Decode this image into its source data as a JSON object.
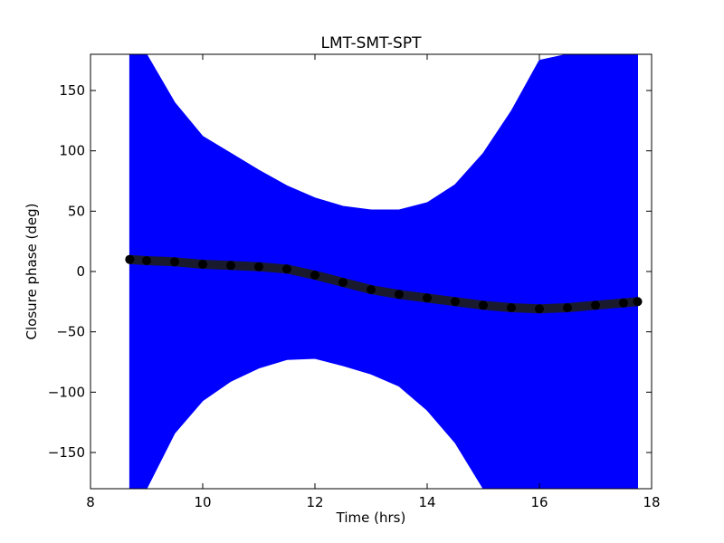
{
  "chart_data": {
    "type": "line",
    "title": "LMT-SMT-SPT",
    "xlabel": "Time (hrs)",
    "ylabel": "Closure phase (deg)",
    "xlim": [
      8,
      18
    ],
    "ylim": [
      -180,
      180
    ],
    "x_ticks": [
      8,
      10,
      12,
      14,
      16,
      18
    ],
    "y_ticks": [
      -150,
      -100,
      -50,
      0,
      50,
      100,
      150
    ],
    "x_tick_labels": [
      "8",
      "10",
      "12",
      "14",
      "16",
      "18"
    ],
    "y_tick_labels": [
      "−150",
      "−100",
      "−50",
      "0",
      "50",
      "100",
      "150"
    ],
    "grid": false,
    "series": [
      {
        "role": "closure-phase",
        "color": "#000000",
        "x": [
          8.7,
          9.0,
          9.5,
          10.0,
          10.5,
          11.0,
          11.5,
          12.0,
          12.5,
          13.0,
          13.5,
          14.0,
          14.5,
          15.0,
          15.5,
          16.0,
          16.5,
          17.0,
          17.5,
          17.75
        ],
        "y": [
          10,
          9,
          8,
          6,
          5,
          4,
          2,
          -3,
          -9,
          -15,
          -19,
          -22,
          -25,
          -28,
          -30,
          -31,
          -30,
          -28,
          -26,
          -25
        ]
      }
    ],
    "error_band": {
      "color": "#0000ff",
      "x": [
        8.7,
        9.0,
        9.5,
        10.0,
        10.5,
        11.0,
        11.5,
        12.0,
        12.5,
        13.0,
        13.5,
        14.0,
        14.5,
        15.0,
        15.5,
        16.0,
        16.5,
        17.0,
        17.5,
        17.75
      ],
      "upper": [
        180,
        180,
        140,
        112,
        98,
        84,
        71,
        61,
        54,
        51,
        51,
        57,
        72,
        98,
        133,
        175,
        180,
        180,
        180,
        180
      ],
      "lower": [
        -180,
        -180,
        -134,
        -107,
        -91,
        -80,
        -73,
        -72,
        -78,
        -85,
        -95,
        -115,
        -142,
        -180,
        -180,
        -180,
        -180,
        -180,
        -180,
        -180
      ]
    }
  }
}
